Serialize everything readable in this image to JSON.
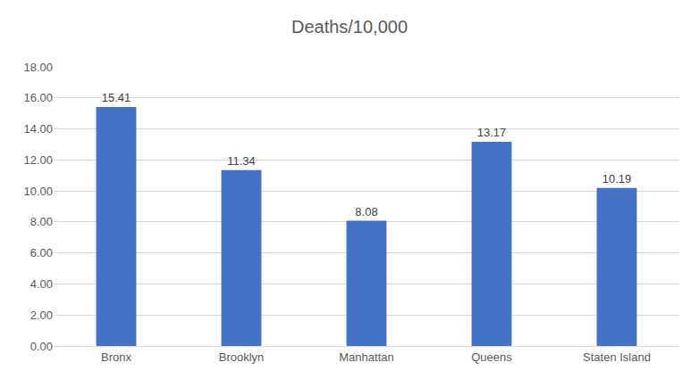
{
  "chart_data": {
    "type": "bar",
    "title": "Deaths/10,000",
    "categories": [
      "Bronx",
      "Brooklyn",
      "Manhattan",
      "Queens",
      "Staten Island"
    ],
    "values": [
      15.41,
      11.34,
      8.08,
      13.17,
      10.19
    ],
    "color": "#4472c4",
    "ylim": [
      0,
      18
    ],
    "yticks": [
      {
        "value": 0,
        "label": "0.00"
      },
      {
        "value": 2,
        "label": "2.00"
      },
      {
        "value": 4,
        "label": "4.00"
      },
      {
        "value": 6,
        "label": "6.00"
      },
      {
        "value": 8,
        "label": "8.00"
      },
      {
        "value": 10,
        "label": "10.00"
      },
      {
        "value": 12,
        "label": "12.00"
      },
      {
        "value": 14,
        "label": "14.00"
      },
      {
        "value": 16,
        "label": "16.00"
      },
      {
        "value": 18,
        "label": "18.00"
      }
    ],
    "grid": true,
    "data_labels": true
  }
}
